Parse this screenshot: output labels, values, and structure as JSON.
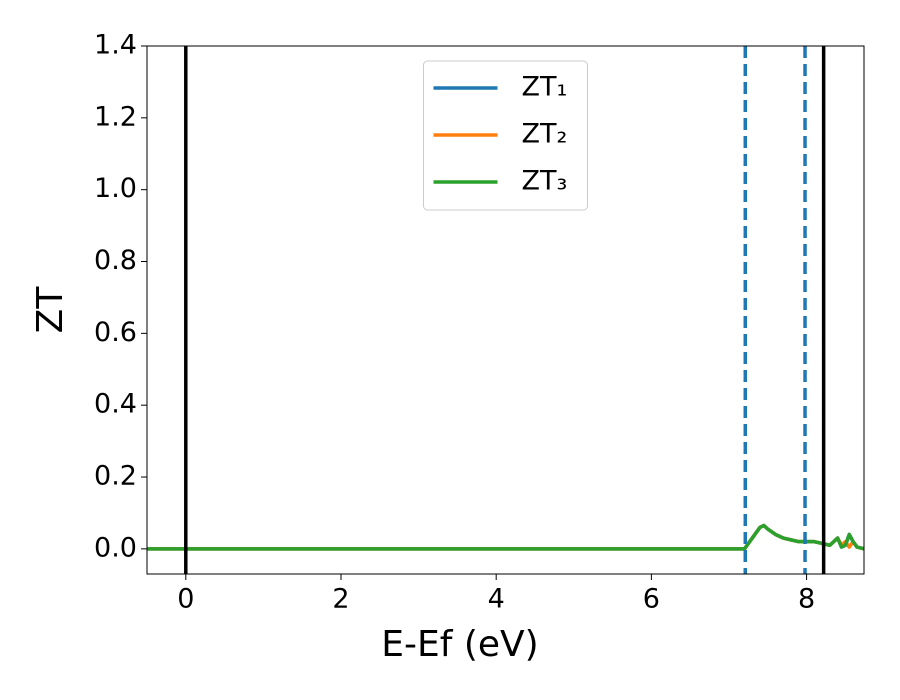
{
  "chart_data": {
    "type": "line",
    "ylabel": "ZT",
    "xlabel": "E-Ef (eV)",
    "x": [
      -0.5,
      7.2,
      7.3,
      7.4,
      7.45,
      7.5,
      7.6,
      7.7,
      7.8,
      7.9,
      8.0,
      8.1,
      8.2,
      8.3,
      8.4,
      8.45,
      8.5,
      8.55,
      8.6,
      8.65,
      8.74
    ],
    "series": [
      {
        "name": "ZT₁",
        "color": "#1f77b4",
        "values": [
          0,
          0,
          0.03,
          0.06,
          0.065,
          0.055,
          0.04,
          0.03,
          0.025,
          0.02,
          0.02,
          0.02,
          0.015,
          0.01,
          0.03,
          0.005,
          0.01,
          0.04,
          0.02,
          0.005,
          0
        ]
      },
      {
        "name": "ZT₂",
        "color": "#ff7f0e",
        "values": [
          0,
          0,
          0.03,
          0.06,
          0.065,
          0.055,
          0.04,
          0.03,
          0.025,
          0.02,
          0.02,
          0.02,
          0.015,
          0.01,
          0.03,
          0.01,
          0.02,
          0.005,
          0.02,
          0.005,
          0
        ]
      },
      {
        "name": "ZT₃",
        "color": "#2ca02c",
        "values": [
          0,
          0,
          0.03,
          0.06,
          0.065,
          0.055,
          0.04,
          0.03,
          0.025,
          0.02,
          0.02,
          0.02,
          0.015,
          0.01,
          0.03,
          0.005,
          0.01,
          0.04,
          0.02,
          0.005,
          0
        ]
      }
    ],
    "vlines": [
      {
        "x": 0,
        "color": "#000000",
        "style": "solid"
      },
      {
        "x": 8.22,
        "color": "#000000",
        "style": "solid"
      },
      {
        "x": 7.21,
        "color": "#1f77b4",
        "style": "dashed"
      },
      {
        "x": 7.98,
        "color": "#1f77b4",
        "style": "dashed"
      }
    ],
    "xlim": [
      -0.5,
      8.74
    ],
    "xticks": [
      0,
      2,
      4,
      6,
      8
    ],
    "ylim": [
      -0.07,
      1.4
    ],
    "yticks": [
      {
        "value": 0,
        "label": "0.0"
      },
      {
        "value": 0.2,
        "label": "0.2"
      },
      {
        "value": 0.4,
        "label": "0.4"
      },
      {
        "value": 0.6,
        "label": "0.6"
      },
      {
        "value": 0.8,
        "label": "0.8"
      },
      {
        "value": 1.0,
        "label": "1.0"
      },
      {
        "value": 1.2,
        "label": "1.2"
      },
      {
        "value": 1.4,
        "label": "1.4"
      }
    ],
    "legend": "upper center",
    "grid": false
  }
}
